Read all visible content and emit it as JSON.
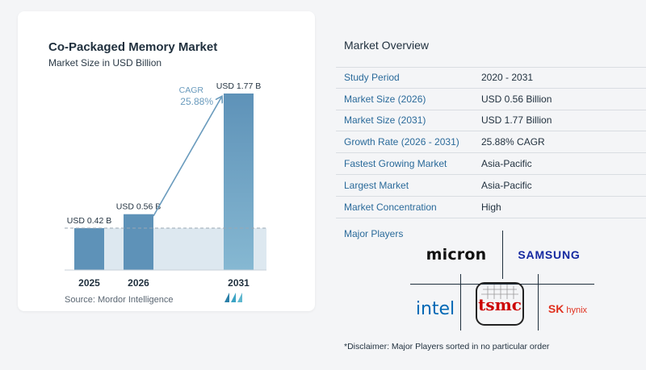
{
  "chart_data": {
    "type": "bar",
    "title": "Co-Packaged Memory Market",
    "subtitle": "Market Size in USD Billion",
    "categories": [
      "2025",
      "2026",
      "2031"
    ],
    "values": [
      0.42,
      0.56,
      1.77
    ],
    "value_labels": [
      "USD 0.42 B",
      "USD 0.56 B",
      "USD 1.77 B"
    ],
    "cagr_label": "CAGR",
    "cagr_value": "25.88%",
    "ylim": [
      0,
      1.77
    ],
    "grid": false,
    "bar_color": "#5e92b8",
    "bar_color_light": "#7fb0cc",
    "shade_color": "#dde8f0"
  },
  "source": "Source:  Mordor Intelligence",
  "overview": {
    "title": "Market Overview",
    "rows": [
      {
        "key": "Study Period",
        "value": "2020 - 2031"
      },
      {
        "key": "Market Size (2026)",
        "value": "USD 0.56 Billion"
      },
      {
        "key": "Market Size (2031)",
        "value": "USD 1.77 Billion"
      },
      {
        "key": "Growth Rate (2026 - 2031)",
        "value": "25.88% CAGR"
      },
      {
        "key": "Fastest Growing Market",
        "value": "Asia-Pacific"
      },
      {
        "key": "Largest Market",
        "value": "Asia-Pacific"
      },
      {
        "key": "Market Concentration",
        "value": "High"
      }
    ],
    "major_players_label": "Major Players",
    "players": {
      "micron": "micron",
      "samsung": "SAMSUNG",
      "intel": "intel",
      "tsmc": "tsmc",
      "skhynix_sk": "SK",
      "skhynix_hynix": "hynix"
    },
    "disclaimer": "*Disclaimer: Major Players sorted in no particular order"
  },
  "colors": {
    "accent": "#2a6a9a",
    "intel_blue": "#0068b5",
    "tsmc_red": "#cc0000",
    "skhynix_red": "#e0301e",
    "samsung_blue": "#1428a0",
    "cagr": "#6a9bbd"
  }
}
